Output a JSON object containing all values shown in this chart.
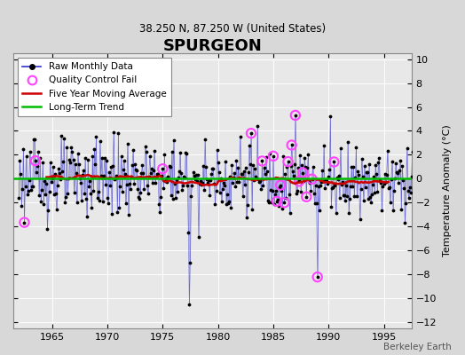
{
  "title": "SPURGEON",
  "subtitle": "38.250 N, 87.250 W (United States)",
  "ylabel": "Temperature Anomaly (°C)",
  "watermark": "Berkeley Earth",
  "xlim": [
    1961.5,
    1997.5
  ],
  "ylim": [
    -12.5,
    10.5
  ],
  "yticks": [
    -12,
    -10,
    -8,
    -6,
    -4,
    -2,
    0,
    2,
    4,
    6,
    8,
    10
  ],
  "xticks": [
    1965,
    1970,
    1975,
    1980,
    1985,
    1990,
    1995
  ],
  "bg_color": "#d8d8d8",
  "plot_bg_color": "#e8e8e8",
  "line_color": "#3333cc",
  "ma_color": "#cc0000",
  "trend_color": "#00bb00",
  "dot_color": "#000000",
  "qc_color": "#ff44ff",
  "trend_slope": 0.0002,
  "trend_intercept": 0.05,
  "n_months": 432,
  "start_year": 1962.0
}
